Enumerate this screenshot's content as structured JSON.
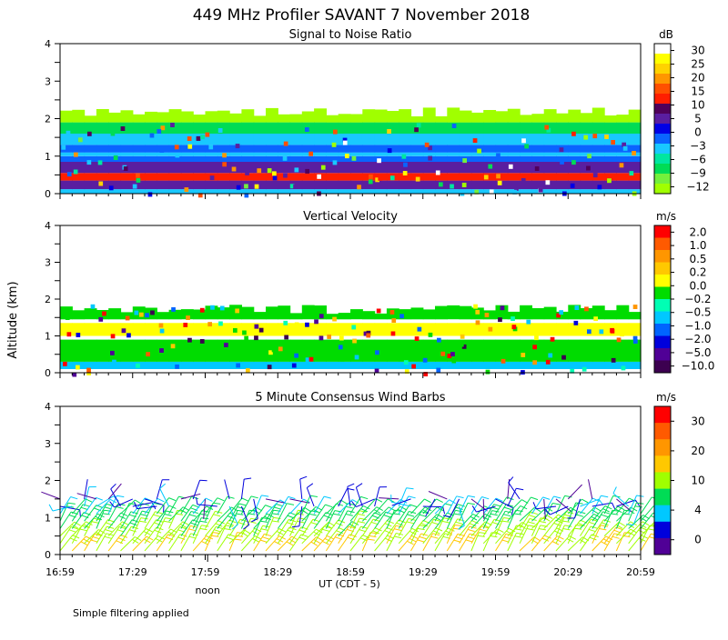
{
  "title": "449 MHz Profiler SAVANT  7 November 2018",
  "y_axis_label": "Altitude (km)",
  "footer_note": "Simple filtering applied",
  "x_axis": {
    "label": "UT  (CDT - 5)",
    "ticks": [
      "16:59",
      "17:29",
      "17:59",
      "18:29",
      "18:59",
      "19:29",
      "19:59",
      "20:29",
      "20:59"
    ],
    "tick_minutes": [
      0,
      30,
      60,
      90,
      120,
      150,
      180,
      210,
      240
    ],
    "noon_label": "noon",
    "noon_minute": 61
  },
  "chart_data": [
    {
      "type": "heatmap",
      "title": "Signal to Noise Ratio",
      "unit": "dB",
      "xlim_minutes": [
        0,
        240
      ],
      "ylim_km": [
        0,
        4
      ],
      "yticks": [
        0,
        1,
        2,
        3,
        4
      ],
      "colorbar": {
        "labels": [
          "30",
          "25",
          "20",
          "15",
          "10",
          "5",
          "0",
          "−3",
          "−6",
          "−9",
          "−12"
        ],
        "colors": [
          "#ffffff",
          "#ffff00",
          "#ffd200",
          "#ff9600",
          "#ff5000",
          "#ff1e00",
          "#50005a",
          "#5a1ea0",
          "#0000e6",
          "#0a64ff",
          "#19c8ff",
          "#00e6a0",
          "#00dc55",
          "#73f03c",
          "#a0ff00"
        ]
      },
      "layers": [
        {
          "from_km": 0.0,
          "to_km": 0.12,
          "color": "#19c8ff"
        },
        {
          "from_km": 0.12,
          "to_km": 0.35,
          "color": "#5a1ea0"
        },
        {
          "from_km": 0.35,
          "to_km": 0.55,
          "color": "#ff1e00"
        },
        {
          "from_km": 0.55,
          "to_km": 0.85,
          "color": "#5a1ea0"
        },
        {
          "from_km": 0.85,
          "to_km": 1.0,
          "color": "#0a64ff"
        },
        {
          "from_km": 1.0,
          "to_km": 1.1,
          "color": "#19c8ff"
        },
        {
          "from_km": 1.1,
          "to_km": 1.3,
          "color": "#0a64ff"
        },
        {
          "from_km": 1.3,
          "to_km": 1.6,
          "color": "#19c8ff"
        },
        {
          "from_km": 1.6,
          "to_km": 1.9,
          "color": "#00dc55"
        },
        {
          "from_km": 1.9,
          "to_km": 2.2,
          "color": "#a0ff00"
        }
      ]
    },
    {
      "type": "heatmap",
      "title": "Vertical Velocity",
      "unit": "m/s",
      "xlim_minutes": [
        0,
        240
      ],
      "ylim_km": [
        0,
        4
      ],
      "yticks": [
        0,
        1,
        2,
        3,
        4
      ],
      "colorbar": {
        "labels": [
          "2.0",
          "1.0",
          "0.5",
          "0.2",
          "0.0",
          "−0.2",
          "−0.5",
          "−1.0",
          "−2.0",
          "−5.0",
          "−10.0"
        ],
        "colors": [
          "#ff0000",
          "#ff5a00",
          "#ff9600",
          "#ffc800",
          "#ffff00",
          "#00dc00",
          "#00ffb4",
          "#00c8ff",
          "#0064ff",
          "#0000dc",
          "#500096",
          "#3c0050"
        ]
      },
      "layers": [
        {
          "from_km": 0.1,
          "to_km": 0.3,
          "color": "#00c8ff"
        },
        {
          "from_km": 0.3,
          "to_km": 0.9,
          "color": "#00dc00"
        },
        {
          "from_km": 1.0,
          "to_km": 1.35,
          "color": "#ffff00"
        },
        {
          "from_km": 1.45,
          "to_km": 1.75,
          "color": "#00dc00"
        }
      ]
    },
    {
      "type": "wind_barbs",
      "title": "5 Minute Consensus Wind Barbs",
      "unit": "m/s",
      "xlim_minutes": [
        0,
        240
      ],
      "ylim_km": [
        0,
        4
      ],
      "yticks": [
        0,
        1,
        2,
        3,
        4
      ],
      "interval_minutes": 5,
      "colorbar": {
        "labels": [
          "30",
          "20",
          "10",
          "4",
          "0"
        ],
        "colors": [
          "#ff0000",
          "#ff5a00",
          "#ff9600",
          "#ffc800",
          "#a0ff00",
          "#00dc55",
          "#00c8ff",
          "#0000dc",
          "#500096"
        ]
      },
      "speed_profile_ms": [
        {
          "alt_km": 0.2,
          "speed": 12
        },
        {
          "alt_km": 0.6,
          "speed": 9
        },
        {
          "alt_km": 1.0,
          "speed": 7
        },
        {
          "alt_km": 1.5,
          "speed": 2
        }
      ]
    }
  ]
}
